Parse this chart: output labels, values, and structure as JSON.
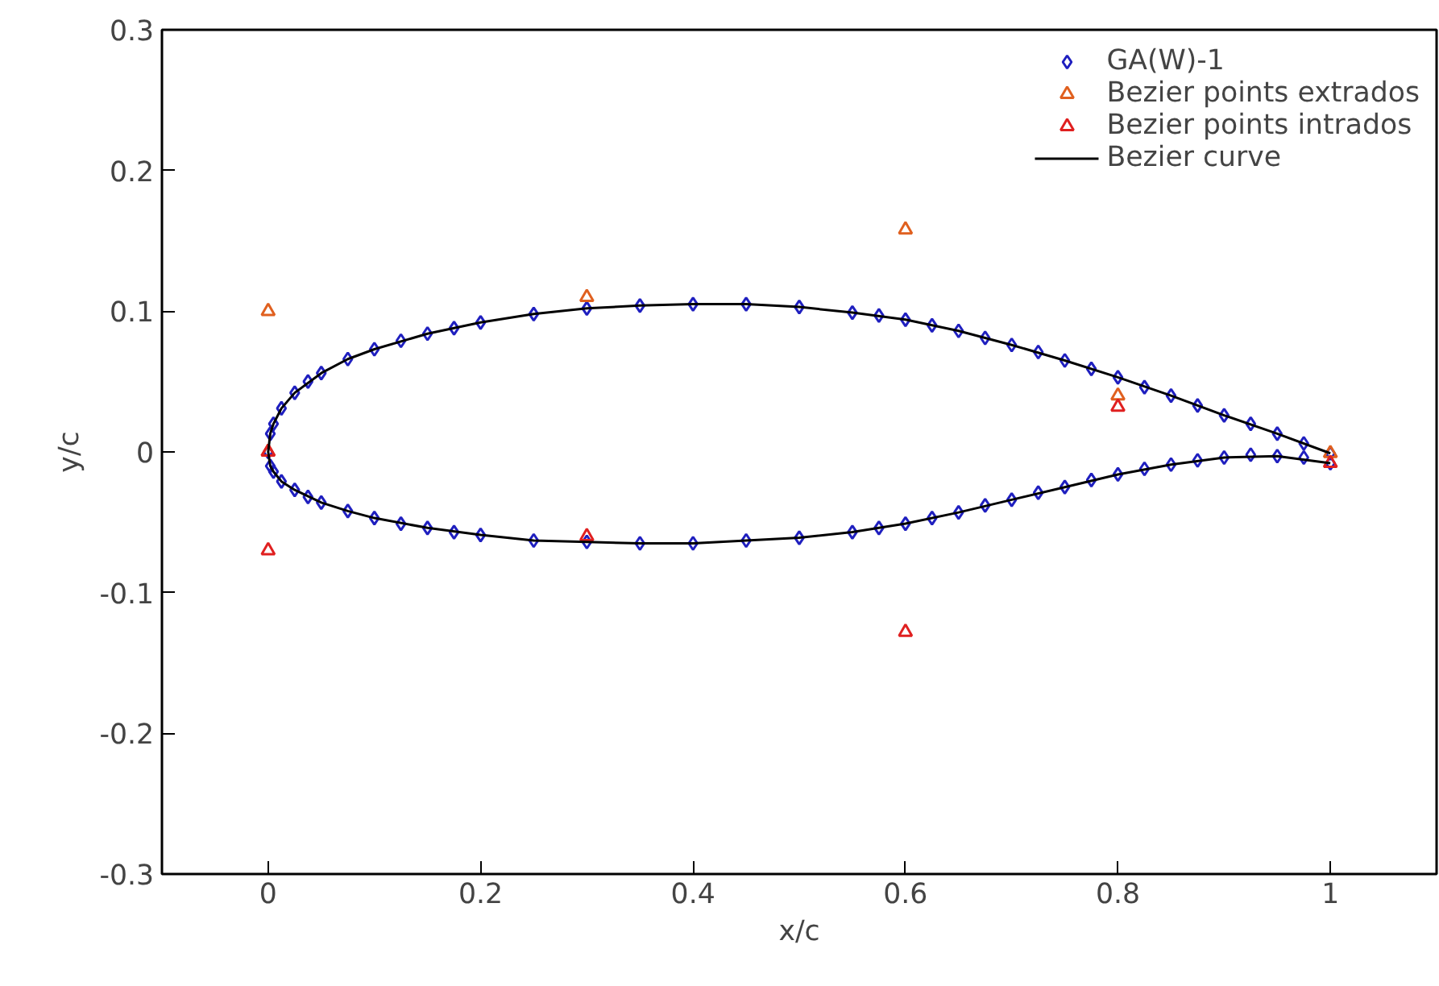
{
  "chart_data": {
    "type": "scatter",
    "xlabel": "x/c",
    "ylabel": "y/c",
    "xlim": [
      -0.1,
      1.1
    ],
    "ylim": [
      -0.3,
      0.3
    ],
    "xticks": [
      0,
      0.2,
      0.4,
      0.6,
      0.8,
      1
    ],
    "yticks": [
      -0.3,
      -0.2,
      -0.1,
      0,
      0.1,
      0.2,
      0.3
    ],
    "grid": false,
    "legend": "top right",
    "series": [
      {
        "name": "GA(W)-1",
        "marker": "diamond",
        "color": "#1f1fbf",
        "x": [
          0,
          0.002,
          0.005,
          0.0125,
          0.025,
          0.0375,
          0.05,
          0.075,
          0.1,
          0.125,
          0.15,
          0.175,
          0.2,
          0.25,
          0.3,
          0.35,
          0.4,
          0.45,
          0.5,
          0.55,
          0.575,
          0.6,
          0.625,
          0.65,
          0.675,
          0.7,
          0.725,
          0.75,
          0.775,
          0.8,
          0.825,
          0.85,
          0.875,
          0.9,
          0.925,
          0.95,
          0.975,
          1.0,
          0.002,
          0.005,
          0.0125,
          0.025,
          0.0375,
          0.05,
          0.075,
          0.1,
          0.125,
          0.15,
          0.175,
          0.2,
          0.25,
          0.3,
          0.35,
          0.4,
          0.45,
          0.5,
          0.55,
          0.575,
          0.6,
          0.625,
          0.65,
          0.675,
          0.7,
          0.725,
          0.75,
          0.775,
          0.8,
          0.825,
          0.85,
          0.875,
          0.9,
          0.925,
          0.95,
          0.975,
          1.0
        ],
        "values": [
          0,
          0.013,
          0.02,
          0.031,
          0.042,
          0.05,
          0.056,
          0.066,
          0.073,
          0.079,
          0.084,
          0.088,
          0.092,
          0.098,
          0.102,
          0.104,
          0.105,
          0.105,
          0.103,
          0.099,
          0.097,
          0.094,
          0.09,
          0.086,
          0.081,
          0.076,
          0.071,
          0.065,
          0.059,
          0.053,
          0.046,
          0.04,
          0.033,
          0.026,
          0.02,
          0.013,
          0.006,
          -0.001,
          -0.01,
          -0.014,
          -0.021,
          -0.027,
          -0.032,
          -0.036,
          -0.042,
          -0.047,
          -0.051,
          -0.054,
          -0.057,
          -0.059,
          -0.063,
          -0.064,
          -0.065,
          -0.065,
          -0.063,
          -0.061,
          -0.057,
          -0.054,
          -0.051,
          -0.047,
          -0.043,
          -0.038,
          -0.034,
          -0.029,
          -0.025,
          -0.02,
          -0.016,
          -0.012,
          -0.009,
          -0.006,
          -0.004,
          -0.002,
          -0.003,
          -0.004,
          -0.008
        ]
      },
      {
        "name": "Bezier points extrados",
        "marker": "triangle",
        "color": "#e0601f",
        "x": [
          0,
          0,
          0.3,
          0.6,
          0.8,
          1.0
        ],
        "values": [
          0,
          0.1,
          0.11,
          0.158,
          0.04,
          -0.001
        ]
      },
      {
        "name": "Bezier points intrados",
        "marker": "triangle",
        "color": "#e02020",
        "x": [
          0,
          0,
          0.3,
          0.6,
          0.8,
          1.0
        ],
        "values": [
          0,
          -0.07,
          -0.06,
          -0.128,
          0.032,
          -0.008
        ]
      },
      {
        "name": "Bezier curve",
        "type": "line",
        "line_style": "solid",
        "color": "#000000",
        "x": [
          1.0,
          0.95,
          0.9,
          0.85,
          0.8,
          0.75,
          0.7,
          0.65,
          0.6,
          0.55,
          0.5,
          0.45,
          0.4,
          0.35,
          0.3,
          0.25,
          0.2,
          0.15,
          0.1,
          0.075,
          0.05,
          0.025,
          0.0125,
          0.005,
          0.002,
          0,
          0.002,
          0.005,
          0.0125,
          0.025,
          0.05,
          0.075,
          0.1,
          0.15,
          0.2,
          0.25,
          0.3,
          0.35,
          0.4,
          0.45,
          0.5,
          0.55,
          0.6,
          0.65,
          0.7,
          0.75,
          0.8,
          0.85,
          0.9,
          0.95,
          1.0
        ],
        "values": [
          -0.001,
          0.013,
          0.026,
          0.04,
          0.053,
          0.065,
          0.076,
          0.086,
          0.094,
          0.099,
          0.103,
          0.105,
          0.105,
          0.104,
          0.102,
          0.098,
          0.092,
          0.084,
          0.073,
          0.066,
          0.056,
          0.042,
          0.031,
          0.02,
          0.013,
          0,
          -0.01,
          -0.014,
          -0.021,
          -0.027,
          -0.036,
          -0.042,
          -0.047,
          -0.054,
          -0.059,
          -0.063,
          -0.064,
          -0.065,
          -0.065,
          -0.063,
          -0.061,
          -0.057,
          -0.051,
          -0.043,
          -0.034,
          -0.025,
          -0.016,
          -0.009,
          -0.004,
          -0.003,
          -0.008
        ]
      }
    ]
  }
}
